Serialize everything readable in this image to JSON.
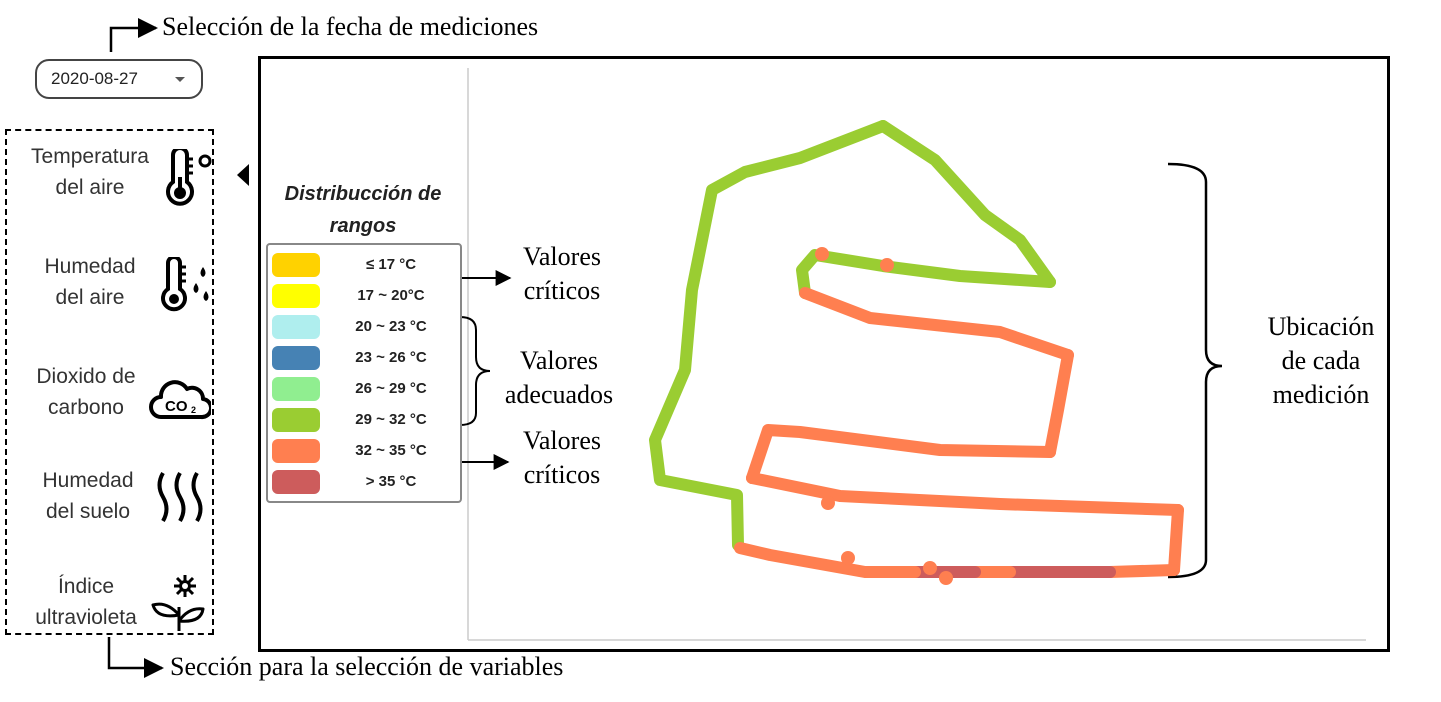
{
  "annotations": {
    "date_selection": "Selección de la fecha de mediciones",
    "variable_section": "Sección para la selección de variables",
    "critical_top": [
      "Valores",
      "críticos"
    ],
    "adequate": [
      "Valores",
      "adecuados"
    ],
    "critical_bottom": [
      "Valores",
      "críticos"
    ],
    "location": [
      "Ubicación",
      "de cada",
      "medición"
    ]
  },
  "date_picker": {
    "value": "2020-08-27"
  },
  "variables": [
    {
      "lines": [
        "Temperatura",
        "del aire"
      ],
      "icon": "thermometer-icon",
      "selected": true
    },
    {
      "lines": [
        "Humedad",
        "del aire"
      ],
      "icon": "thermometer-droplets-icon",
      "selected": false
    },
    {
      "lines": [
        "Dioxido de",
        "carbono"
      ],
      "icon": "co2-cloud-icon",
      "selected": false
    },
    {
      "lines": [
        "Humedad",
        "del suelo"
      ],
      "icon": "heat-waves-icon",
      "selected": false
    },
    {
      "lines": [
        "Índice",
        "ultravioleta"
      ],
      "icon": "sun-sprout-icon",
      "selected": false
    }
  ],
  "legend": {
    "title_lines": [
      "Distribucción de",
      "rangos"
    ],
    "items": [
      {
        "label": "≤ 17 °C",
        "color": "#FFD200"
      },
      {
        "label": "17 ~ 20°C",
        "color": "#FFFF00"
      },
      {
        "label": "20 ~ 23 °C",
        "color": "#AFEEEE"
      },
      {
        "label": "23 ~ 26 °C",
        "color": "#4682B4"
      },
      {
        "label": "26 ~ 29 °C",
        "color": "#90EE90"
      },
      {
        "label": "29 ~ 32 °C",
        "color": "#9ACD32"
      },
      {
        "label": "32 ~ 35 °C",
        "color": "#FF7F50"
      },
      {
        "label": "> 35 °C",
        "color": "#CD5C5C"
      }
    ]
  },
  "route_colors": {
    "green": "#9ACD32",
    "orange": "#FF7F50",
    "red": "#CD5C5C"
  }
}
